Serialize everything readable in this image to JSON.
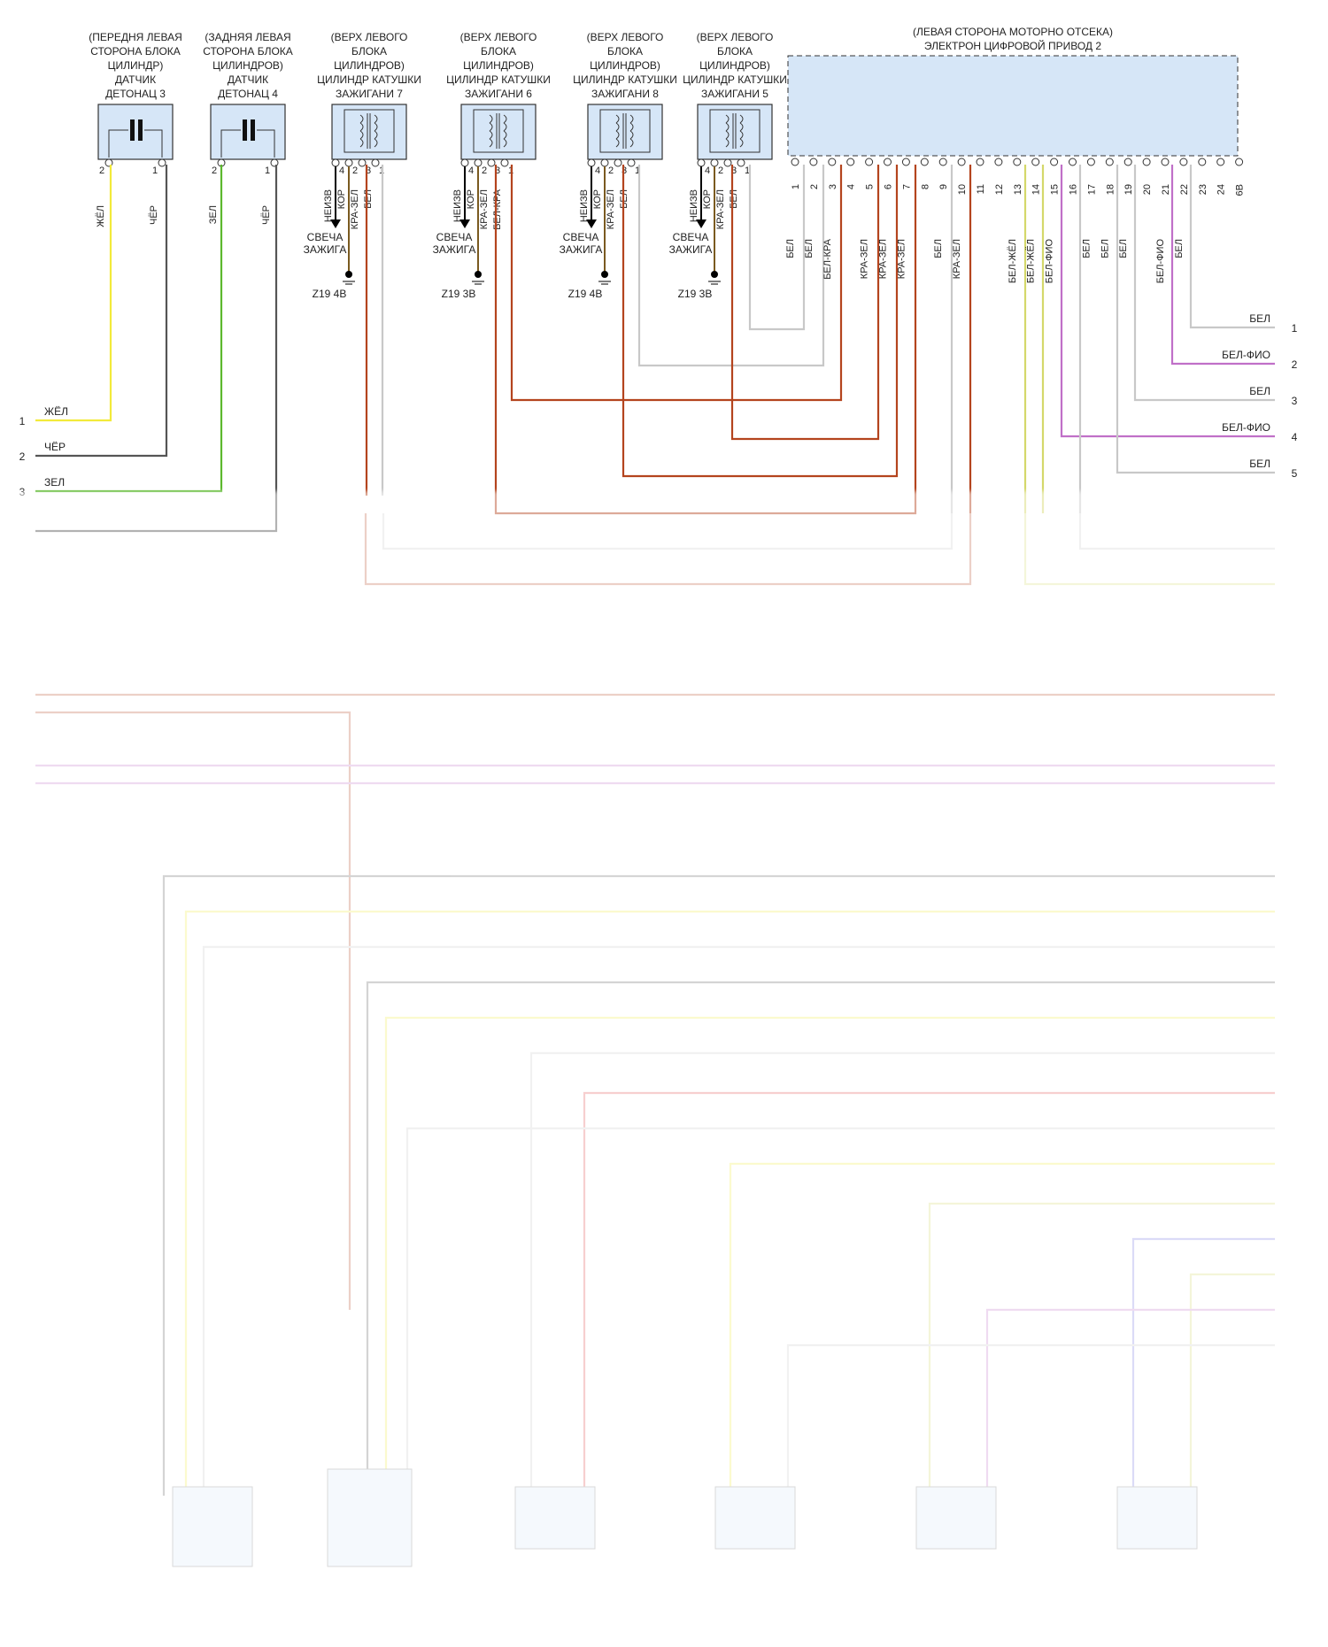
{
  "components": [
    {
      "id": "ks3",
      "title": [
        "(ПЕРЕДНЯ ЛЕВАЯ",
        "СТОРОНА БЛОКА",
        "ЦИЛИНДР)",
        "ДАТЧИК",
        "ДЕТОНАЦ 3"
      ],
      "pins": [
        "2",
        "1"
      ],
      "wires": [
        "ЖЁЛ",
        "ЧЁР"
      ]
    },
    {
      "id": "ks4",
      "title": [
        "(ЗАДНЯЯ ЛЕВАЯ",
        "СТОРОНА БЛОКА",
        "ЦИЛИНДРОВ)",
        "ДАТЧИК",
        "ДЕТОНАЦ 4"
      ],
      "pins": [
        "2",
        "1"
      ],
      "wires": [
        "ЗЕЛ",
        "ЧЁР"
      ]
    },
    {
      "id": "coil7",
      "title": [
        "(ВЕРХ ЛЕВОГО",
        "БЛОКА",
        "ЦИЛИНДРОВ)",
        "ЦИЛИНДР КАТУШКИ",
        "ЗАЖИГАНИ 7"
      ],
      "pins": [
        "4",
        "2",
        "3",
        "1"
      ],
      "wires": [
        "НЕИЗВ",
        "КОР",
        "КРА-ЗЕЛ",
        "БЕЛ"
      ],
      "plug": [
        "СВЕЧА",
        "ЗАЖИГА"
      ],
      "ground": "Z19 4B"
    },
    {
      "id": "coil6",
      "title": [
        "(ВЕРХ ЛЕВОГО",
        "БЛОКА",
        "ЦИЛИНДРОВ)",
        "ЦИЛИНДР КАТУШКИ",
        "ЗАЖИГАНИ 6"
      ],
      "pins": [
        "4",
        "2",
        "3",
        "1"
      ],
      "wires": [
        "НЕИЗВ",
        "КОР",
        "КРА-ЗЕЛ",
        "БЕЛ-КРА"
      ],
      "plug": [
        "СВЕЧА",
        "ЗАЖИГА"
      ],
      "ground": "Z19 3B"
    },
    {
      "id": "coil8",
      "title": [
        "(ВЕРХ ЛЕВОГО",
        "БЛОКА",
        "ЦИЛИНДРОВ)",
        "ЦИЛИНДР КАТУШКИ",
        "ЗАЖИГАНИ 8"
      ],
      "pins": [
        "4",
        "2",
        "3",
        "1"
      ],
      "wires": [
        "НЕИЗВ",
        "КОР",
        "КРА-ЗЕЛ",
        "БЕЛ"
      ],
      "plug": [
        "СВЕЧА",
        "ЗАЖИГА"
      ],
      "ground": "Z19 4B"
    },
    {
      "id": "coil5",
      "title": [
        "(ВЕРХ ЛЕВОГО",
        "БЛОКА",
        "ЦИЛИНДРОВ)",
        "ЦИЛИНДР КАТУШКИ",
        "ЗАЖИГАНИ 5"
      ],
      "pins": [
        "4",
        "2",
        "3",
        "1"
      ],
      "wires": [
        "НЕИЗВ",
        "КОР",
        "КРА-ЗЕЛ",
        "БЕЛ"
      ],
      "plug": [
        "СВЕЧА",
        "ЗАЖИГА"
      ],
      "ground": "Z19 3B"
    }
  ],
  "connector": {
    "title": [
      "(ЛЕВАЯ СТОРОНА МОТОРНО ОТСЕКА)",
      "ЭЛЕКТРОН ЦИФРОВОЙ ПРИВОД 2"
    ],
    "pins": [
      "1",
      "2",
      "3",
      "4",
      "5",
      "6",
      "7",
      "8",
      "9",
      "10",
      "11",
      "12",
      "13",
      "14",
      "15",
      "16",
      "17",
      "18",
      "19",
      "20",
      "21",
      "22",
      "23",
      "24",
      "6B"
    ],
    "wire_labels": [
      "БЕЛ",
      "БЕЛ",
      "БЕЛ-КРА",
      "",
      "КРА-ЗЕЛ",
      "КРА-ЗЕЛ",
      "КРА-ЗЕЛ",
      "",
      "БЕЛ",
      "КРА-ЗЕЛ",
      "",
      "",
      "БЕЛ-ЖЁЛ",
      "БЕЛ-ЖЁЛ",
      "БЕЛ-ФИО",
      "",
      "БЕЛ",
      "БЕЛ",
      "БЕЛ",
      "",
      "БЕЛ-ФИО",
      "БЕЛ",
      "",
      "",
      ""
    ]
  },
  "left_outputs": [
    {
      "label": "ЖЁЛ",
      "num": "1"
    },
    {
      "label": "ЧЁР",
      "num": "2"
    },
    {
      "label": "ЗЕЛ",
      "num": "3"
    }
  ],
  "right_outputs": [
    {
      "label": "БЕЛ",
      "num": "1"
    },
    {
      "label": "БЕЛ-ФИО",
      "num": "2"
    },
    {
      "label": "БЕЛ",
      "num": "3"
    },
    {
      "label": "БЕЛ-ФИО",
      "num": "4"
    },
    {
      "label": "БЕЛ",
      "num": "5"
    }
  ],
  "colors": {
    "yellow": "#f2ea3a",
    "black": "#555555",
    "green": "#5cb82e",
    "rust": "#b4441e",
    "white_wire": "#c8c8c8",
    "violet": "#c070c8",
    "olive": "#d4d86a",
    "blue": "#7070e0",
    "box_fill": "#d6e6f7",
    "red": "#e04040"
  }
}
